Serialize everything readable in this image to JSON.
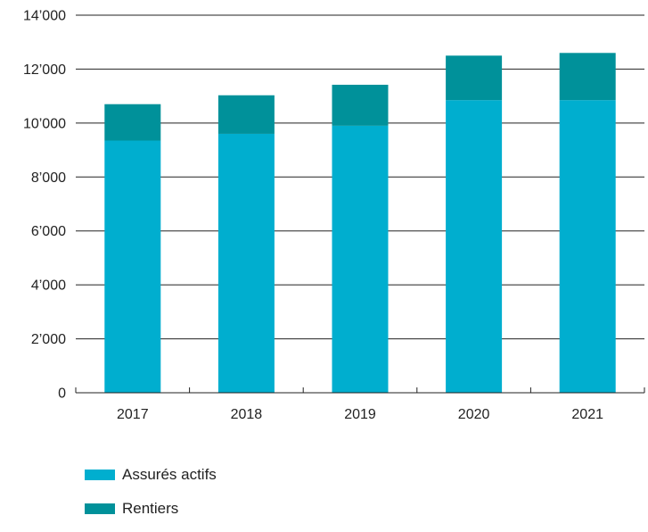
{
  "chart_data": {
    "type": "bar",
    "stacked": true,
    "categories": [
      "2017",
      "2018",
      "2019",
      "2020",
      "2021"
    ],
    "series": [
      {
        "name": "Assurés actifs",
        "color": "#00AECF",
        "values": [
          9350,
          9600,
          9900,
          10850,
          10850
        ]
      },
      {
        "name": "Rentiers",
        "color": "#00919A",
        "values": [
          1350,
          1430,
          1520,
          1650,
          1750
        ]
      }
    ],
    "ylim": [
      0,
      14000
    ],
    "yticks": [
      0,
      2000,
      4000,
      6000,
      8000,
      10000,
      12000,
      14000
    ],
    "ytick_labels": [
      "0",
      "2’000",
      "4’000",
      "6’000",
      "8’000",
      "10’000",
      "12’000",
      "14’000"
    ],
    "grid": true,
    "legend_position": "bottom-left"
  }
}
